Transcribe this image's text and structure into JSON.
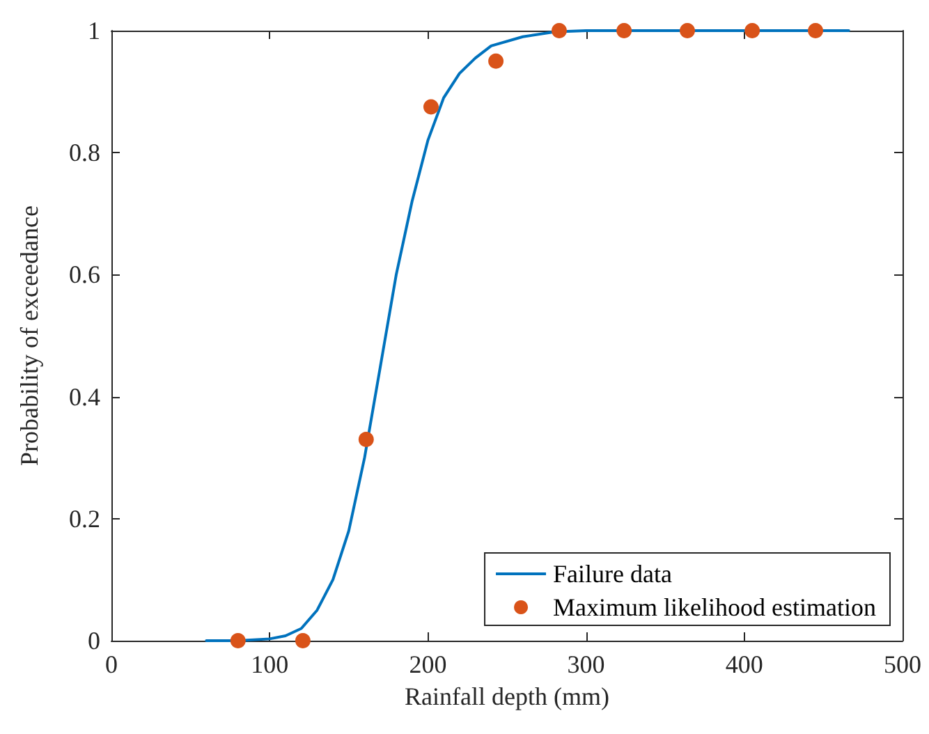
{
  "chart_data": {
    "type": "line",
    "xlabel": "Rainfall depth (mm)",
    "ylabel": "Probability of exceedance",
    "xlim": [
      0,
      500
    ],
    "xticks": [
      0,
      100,
      200,
      300,
      400,
      500
    ],
    "ylim": [
      0,
      1
    ],
    "yticks": [
      0,
      0.2,
      0.4,
      0.6,
      0.8,
      1
    ],
    "grid": false,
    "legend": "bottom right",
    "series": [
      {
        "name": "Failure data",
        "color": "#0072bd",
        "marker": "none",
        "x": [
          60,
          80,
          100,
          110,
          120,
          130,
          140,
          150,
          160,
          170,
          180,
          190,
          200,
          210,
          220,
          230,
          240,
          260,
          280,
          300,
          350,
          400,
          466
        ],
        "values": [
          0,
          0,
          0.003,
          0.008,
          0.02,
          0.05,
          0.1,
          0.18,
          0.3,
          0.45,
          0.6,
          0.72,
          0.82,
          0.89,
          0.93,
          0.955,
          0.975,
          0.99,
          0.998,
          1,
          1,
          1,
          1
        ]
      },
      {
        "name": "Maximum likelihood estimation",
        "type": "scatter",
        "color": "#d95319",
        "marker": "circle",
        "x": [
          80,
          121,
          161,
          202,
          243,
          283,
          324,
          364,
          405,
          445
        ],
        "values": [
          0,
          0,
          0.33,
          0.875,
          0.95,
          1,
          1,
          1,
          1,
          1
        ]
      }
    ]
  }
}
